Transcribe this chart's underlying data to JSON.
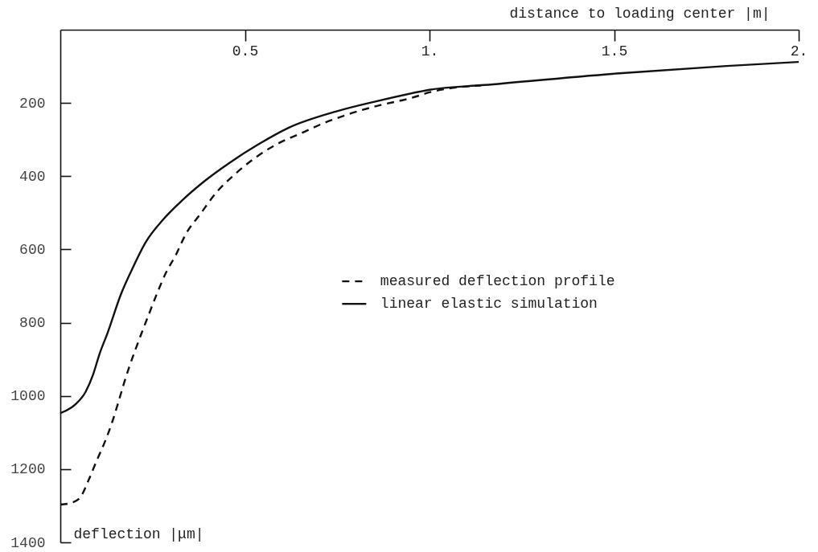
{
  "chart_data": {
    "type": "line",
    "xlabel": "distance to loading center |m|",
    "ylabel": "deflection |μm|",
    "xlim": [
      0,
      2
    ],
    "xticks": [
      0.5,
      {
        "value": 1,
        "label": "1."
      },
      1.5,
      {
        "value": 2,
        "label": "2."
      }
    ],
    "ylim": [
      1400,
      0
    ],
    "yticks": [
      200,
      400,
      600,
      800,
      1000,
      1200,
      1400
    ],
    "legend": "center",
    "series": [
      {
        "name": "measured deflection profile",
        "color": "#111111",
        "line_style": "dashed",
        "x": [
          0,
          0.033,
          0.055,
          0.077,
          0.098,
          0.12,
          0.139,
          0.157,
          0.172,
          0.186,
          0.204,
          0.223,
          0.241,
          0.26,
          0.286,
          0.313,
          0.34,
          0.378,
          0.423,
          0.468,
          0.529,
          0.597,
          0.652,
          0.711,
          0.783,
          0.858,
          0.952,
          1.0,
          1.14
        ],
        "values": [
          1297,
          1291,
          1276,
          1229,
          1178,
          1127,
          1076,
          1018,
          967,
          923,
          872,
          821,
          774,
          725,
          664,
          615,
          558,
          505,
          444,
          399,
          349,
          307,
          283,
          256,
          230,
          208,
          186,
          171,
          152
        ]
      },
      {
        "name": "linear elastic simulation",
        "color": "#111111",
        "line_style": "solid",
        "x": [
          0,
          0.04,
          0.069,
          0.088,
          0.106,
          0.128,
          0.164,
          0.194,
          0.232,
          0.278,
          0.33,
          0.391,
          0.459,
          0.535,
          0.618,
          0.748,
          0.858,
          0.974,
          1.0,
          1.149,
          1.514,
          1.805,
          2.0
        ],
        "values": [
          1047,
          1024,
          988,
          944,
          886,
          828,
          723,
          655,
          579,
          519,
          466,
          413,
          363,
          314,
          268,
          223,
          195,
          169,
          164,
          151,
          119,
          99,
          88
        ]
      }
    ]
  }
}
